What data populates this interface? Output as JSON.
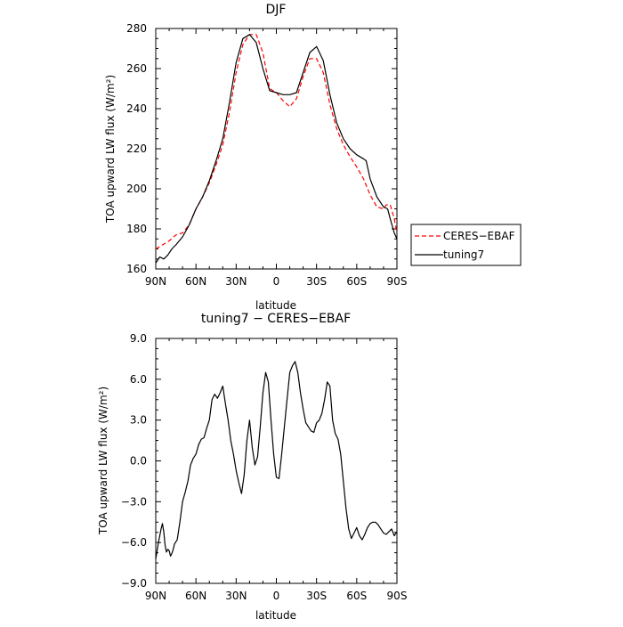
{
  "chart_data": [
    {
      "type": "line",
      "title": "DJF",
      "xlabel": "latitude",
      "ylabel": "TOA upward LW flux (W/m²)",
      "xlim": [
        90,
        -90
      ],
      "ylim": [
        160,
        280
      ],
      "x_ticks": [
        90,
        60,
        30,
        0,
        -30,
        -60,
        -90
      ],
      "x_tick_labels": [
        "90N",
        "60N",
        "30N",
        "0",
        "30S",
        "60S",
        "90S"
      ],
      "y_ticks": [
        160,
        180,
        200,
        220,
        240,
        260,
        280
      ],
      "y_tick_labels": [
        "160",
        "180",
        "200",
        "220",
        "240",
        "260",
        "280"
      ],
      "legend": "right-outside",
      "series": [
        {
          "name": "CERES−EBAF",
          "color": "#ff0000",
          "dash": "dashed",
          "x": [
            90,
            85,
            80,
            75,
            70,
            65,
            60,
            55,
            50,
            45,
            40,
            35,
            30,
            25,
            20,
            15,
            10,
            5,
            0,
            -5,
            -10,
            -15,
            -20,
            -25,
            -30,
            -35,
            -40,
            -45,
            -50,
            -55,
            -60,
            -65,
            -70,
            -75,
            -80,
            -82,
            -85,
            -88,
            -90
          ],
          "y": [
            170,
            172,
            174,
            177,
            178,
            182,
            190,
            196,
            203,
            212,
            222,
            238,
            258,
            272,
            277,
            277,
            268,
            250,
            248,
            244,
            241,
            245,
            256,
            265,
            265,
            258,
            242,
            230,
            222,
            216,
            211,
            205,
            197,
            191,
            190,
            192,
            192,
            185,
            178
          ]
        },
        {
          "name": "tuning7",
          "color": "#000000",
          "dash": "solid",
          "x": [
            90,
            87,
            84,
            81,
            78,
            75,
            70,
            65,
            60,
            55,
            50,
            45,
            40,
            35,
            30,
            25,
            20,
            15,
            10,
            5,
            0,
            -5,
            -10,
            -15,
            -20,
            -25,
            -30,
            -35,
            -40,
            -45,
            -50,
            -55,
            -60,
            -65,
            -67,
            -70,
            -75,
            -80,
            -83,
            -85,
            -88,
            -90
          ],
          "y": [
            163,
            166,
            165,
            167,
            170,
            172,
            176,
            182,
            190,
            196,
            204,
            214,
            225,
            243,
            263,
            275,
            277,
            273,
            260,
            249,
            248,
            247,
            247,
            248,
            258,
            268,
            271,
            264,
            247,
            233,
            225,
            220,
            217,
            215,
            214,
            205,
            196,
            191,
            190,
            185,
            178,
            175
          ]
        }
      ]
    },
    {
      "type": "line",
      "title": "tuning7 − CERES−EBAF",
      "xlabel": "latitude",
      "ylabel": "TOA upward LW flux (W/m²)",
      "xlim": [
        90,
        -90
      ],
      "ylim": [
        -9,
        9
      ],
      "x_ticks": [
        90,
        60,
        30,
        0,
        -30,
        -60,
        -90
      ],
      "x_tick_labels": [
        "90N",
        "60N",
        "30N",
        "0",
        "30S",
        "60S",
        "90S"
      ],
      "y_ticks": [
        -9,
        -6,
        -3,
        0,
        3,
        6,
        9
      ],
      "y_tick_labels": [
        "−9.0",
        "−6.0",
        "−3.0",
        "0.0",
        "3.0",
        "6.0",
        "9.0"
      ],
      "series": [
        {
          "name": "",
          "color": "#000000",
          "dash": "solid",
          "x": [
            90,
            88,
            86,
            85,
            84,
            83,
            82,
            81,
            80,
            79,
            78,
            77,
            76,
            74,
            72,
            70,
            68,
            66,
            64,
            62,
            60,
            58,
            56,
            54,
            52,
            50,
            48,
            46,
            44,
            42,
            40,
            38,
            36,
            34,
            32,
            30,
            28,
            26,
            24,
            22,
            20,
            18,
            16,
            14,
            12,
            10,
            8,
            6,
            4,
            2,
            0,
            -2,
            -4,
            -6,
            -8,
            -10,
            -12,
            -14,
            -16,
            -18,
            -20,
            -22,
            -24,
            -26,
            -28,
            -30,
            -32,
            -34,
            -36,
            -38,
            -40,
            -42,
            -44,
            -46,
            -48,
            -50,
            -52,
            -54,
            -56,
            -58,
            -60,
            -62,
            -64,
            -66,
            -68,
            -70,
            -72,
            -74,
            -76,
            -78,
            -80,
            -82,
            -84,
            -86,
            -88,
            -90
          ],
          "y": [
            -7.2,
            -6.0,
            -5.0,
            -4.6,
            -5.2,
            -6.2,
            -6.7,
            -6.5,
            -6.6,
            -7.0,
            -6.8,
            -6.5,
            -6.1,
            -5.8,
            -4.5,
            -3.0,
            -2.3,
            -1.5,
            -0.3,
            0.2,
            0.5,
            1.2,
            1.6,
            1.7,
            2.4,
            3.0,
            4.5,
            4.9,
            4.6,
            5.0,
            5.5,
            4.2,
            3.0,
            1.5,
            0.5,
            -0.7,
            -1.6,
            -2.4,
            -1.0,
            1.5,
            3.0,
            1.0,
            -0.3,
            0.3,
            2.5,
            5.0,
            6.5,
            5.8,
            3.0,
            0.5,
            -1.2,
            -1.3,
            0.5,
            2.5,
            4.5,
            6.5,
            7.0,
            7.3,
            6.5,
            5.0,
            3.8,
            2.8,
            2.5,
            2.2,
            2.1,
            2.8,
            3.0,
            3.5,
            4.5,
            5.8,
            5.5,
            3.0,
            2.0,
            1.6,
            0.5,
            -1.5,
            -3.5,
            -5.0,
            -5.7,
            -5.3,
            -4.9,
            -5.5,
            -5.8,
            -5.4,
            -4.9,
            -4.6,
            -4.5,
            -4.5,
            -4.7,
            -5.0,
            -5.3,
            -5.4,
            -5.2,
            -5.0,
            -5.5,
            -5.2
          ]
        }
      ]
    }
  ]
}
